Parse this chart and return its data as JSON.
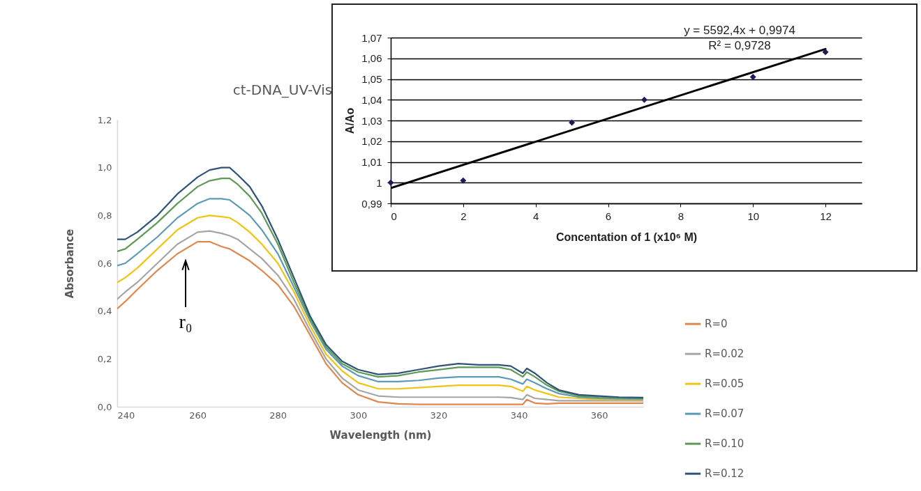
{
  "chart_data": [
    {
      "type": "line",
      "title": "ct-DNA_UV-Vis",
      "xlabel": "Wavelength (nm)",
      "ylabel": "Absorbance",
      "x": [
        240,
        242,
        245,
        250,
        255,
        260,
        263,
        266,
        268,
        270,
        273,
        276,
        280,
        284,
        288,
        292,
        296,
        300,
        305,
        310,
        315,
        320,
        325,
        330,
        335,
        338,
        341,
        342,
        344,
        347,
        350,
        355,
        360,
        365,
        371
      ],
      "series": [
        {
          "name": "R=0",
          "color": "#e0874f",
          "values": [
            0.41,
            0.44,
            0.49,
            0.57,
            0.64,
            0.69,
            0.69,
            0.67,
            0.66,
            0.64,
            0.61,
            0.57,
            0.51,
            0.42,
            0.3,
            0.18,
            0.1,
            0.05,
            0.02,
            0.012,
            0.01,
            0.01,
            0.01,
            0.01,
            0.01,
            0.01,
            0.01,
            0.03,
            0.015,
            0.012,
            0.015,
            0.015,
            0.015,
            0.015,
            0.015
          ]
        },
        {
          "name": "R=0.02",
          "color": "#a5a5a5",
          "values": [
            0.45,
            0.48,
            0.52,
            0.6,
            0.68,
            0.73,
            0.735,
            0.725,
            0.715,
            0.7,
            0.66,
            0.62,
            0.55,
            0.45,
            0.32,
            0.2,
            0.12,
            0.07,
            0.045,
            0.04,
            0.04,
            0.04,
            0.04,
            0.04,
            0.04,
            0.038,
            0.03,
            0.05,
            0.035,
            0.03,
            0.025,
            0.025,
            0.025,
            0.025,
            0.025
          ]
        },
        {
          "name": "R=0.05",
          "color": "#f2c314",
          "values": [
            0.52,
            0.54,
            0.58,
            0.66,
            0.74,
            0.79,
            0.8,
            0.795,
            0.79,
            0.77,
            0.73,
            0.68,
            0.6,
            0.48,
            0.34,
            0.22,
            0.15,
            0.1,
            0.075,
            0.075,
            0.08,
            0.085,
            0.09,
            0.09,
            0.09,
            0.085,
            0.065,
            0.085,
            0.07,
            0.055,
            0.04,
            0.035,
            0.03,
            0.03,
            0.03
          ]
        },
        {
          "name": "R=0.07",
          "color": "#5b9bb5",
          "values": [
            0.59,
            0.6,
            0.64,
            0.71,
            0.79,
            0.85,
            0.87,
            0.87,
            0.865,
            0.84,
            0.8,
            0.74,
            0.64,
            0.5,
            0.36,
            0.24,
            0.17,
            0.13,
            0.105,
            0.105,
            0.11,
            0.12,
            0.125,
            0.125,
            0.125,
            0.115,
            0.095,
            0.115,
            0.1,
            0.075,
            0.055,
            0.04,
            0.035,
            0.033,
            0.032
          ]
        },
        {
          "name": "R=0.10",
          "color": "#5d9a55",
          "values": [
            0.65,
            0.66,
            0.7,
            0.77,
            0.85,
            0.92,
            0.945,
            0.955,
            0.955,
            0.93,
            0.88,
            0.81,
            0.68,
            0.52,
            0.37,
            0.25,
            0.18,
            0.145,
            0.125,
            0.13,
            0.145,
            0.155,
            0.165,
            0.165,
            0.165,
            0.155,
            0.125,
            0.145,
            0.125,
            0.09,
            0.065,
            0.045,
            0.04,
            0.037,
            0.035
          ]
        },
        {
          "name": "R=0.12",
          "color": "#2f5277",
          "values": [
            0.7,
            0.7,
            0.73,
            0.8,
            0.89,
            0.96,
            0.99,
            1.0,
            1.0,
            0.97,
            0.92,
            0.84,
            0.7,
            0.54,
            0.38,
            0.26,
            0.19,
            0.155,
            0.135,
            0.14,
            0.155,
            0.17,
            0.18,
            0.175,
            0.175,
            0.17,
            0.14,
            0.16,
            0.14,
            0.1,
            0.07,
            0.05,
            0.045,
            0.04,
            0.038
          ]
        }
      ],
      "xlim": [
        240,
        371
      ],
      "xticks": [
        240,
        260,
        280,
        300,
        320,
        340,
        360
      ],
      "ylim": [
        0,
        1.2
      ],
      "yticks": [
        {
          "value": 0,
          "label": "0,0"
        },
        {
          "value": 0.2,
          "label": "0,2"
        },
        {
          "value": 0.4,
          "label": "0,4"
        },
        {
          "value": 0.6,
          "label": "0,6"
        },
        {
          "value": 0.8,
          "label": "0,8"
        },
        {
          "value": 1.0,
          "label": "1,0"
        },
        {
          "value": 1.2,
          "label": "1,2"
        }
      ],
      "legend": "right",
      "annotations": [
        "r₀"
      ]
    },
    {
      "type": "scatter",
      "xlabel": "Concentation of 1 (x10⁶ M)",
      "ylabel": "A/Ao",
      "x": [
        0,
        2,
        5,
        7,
        10,
        12
      ],
      "series": [
        {
          "color": "#1c1c5c",
          "marker": "diamond",
          "values": [
            1.0,
            1.001,
            1.029,
            1.04,
            1.051,
            1.063
          ]
        },
        {
          "type": "line",
          "color": "#000000",
          "x": [
            0,
            12
          ],
          "values": [
            0.9974,
            1.0645
          ]
        }
      ],
      "xlim": [
        0,
        13
      ],
      "xticks": [
        0,
        2,
        4,
        6,
        8,
        10,
        12
      ],
      "ylim": [
        0.99,
        1.07
      ],
      "yticks": [
        {
          "value": 0.99,
          "label": "0,99"
        },
        1,
        {
          "value": 1.01,
          "label": "1,01"
        },
        {
          "value": 1.02,
          "label": "1,02"
        },
        {
          "value": 1.03,
          "label": "1,03"
        },
        {
          "value": 1.04,
          "label": "1,04"
        },
        {
          "value": 1.05,
          "label": "1,05"
        },
        {
          "value": 1.06,
          "label": "1,06"
        },
        {
          "value": 1.07,
          "label": "1,07"
        }
      ],
      "grid": "y",
      "annotations": [
        "y = 5592,4x + 0,9974",
        "R² = 0,9728"
      ]
    }
  ]
}
